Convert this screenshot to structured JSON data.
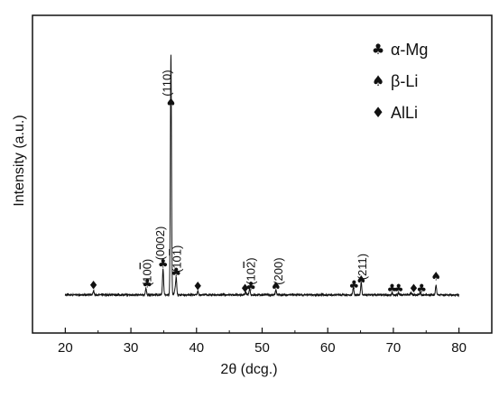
{
  "chart_data": {
    "type": "line",
    "xlabel": "2θ (dcg.)",
    "ylabel": "Intensity (a.u.)",
    "xlim": [
      15,
      85
    ],
    "ylim": [
      0,
      100
    ],
    "x_ticks": [
      20,
      30,
      40,
      50,
      60,
      70,
      80
    ],
    "y_ticks_visible": false,
    "grid": false,
    "legend": {
      "placement": "top-right",
      "entries": [
        {
          "symbol": "club",
          "label": "α-Mg"
        },
        {
          "symbol": "spade",
          "label": "β-Li"
        },
        {
          "symbol": "diamond",
          "label": "AlLi"
        }
      ]
    },
    "series": [
      {
        "baseline": 3,
        "peaks": [
          {
            "x": 24.3,
            "y": 1.8
          },
          {
            "x": 32.3,
            "y": 2.5
          },
          {
            "x": 34.9,
            "y": 10.5
          },
          {
            "x": 36.1,
            "y": 97
          },
          {
            "x": 36.7,
            "y": 2
          },
          {
            "x": 36.9,
            "y": 7
          },
          {
            "x": 40.2,
            "y": 1.5
          },
          {
            "x": 47.5,
            "y": 1
          },
          {
            "x": 48.1,
            "y": 2.5
          },
          {
            "x": 52.1,
            "y": 1.8
          },
          {
            "x": 63.9,
            "y": 3
          },
          {
            "x": 65.1,
            "y": 5
          },
          {
            "x": 69.8,
            "y": 0.8
          },
          {
            "x": 70.8,
            "y": 0.8
          },
          {
            "x": 72.7,
            "y": 0.8
          },
          {
            "x": 74.1,
            "y": 1
          },
          {
            "x": 76.5,
            "y": 4
          }
        ]
      }
    ],
    "markers": [
      {
        "x": 24.3,
        "y": 5.2,
        "symbol": "diamond"
      },
      {
        "x": 32.5,
        "y": 6,
        "symbol": "club"
      },
      {
        "x": 34.9,
        "y": 14,
        "symbol": "club"
      },
      {
        "x": 36.1,
        "y": 79,
        "symbol": "spade"
      },
      {
        "x": 36.9,
        "y": 10.5,
        "symbol": "club"
      },
      {
        "x": 40.2,
        "y": 5,
        "symbol": "diamond"
      },
      {
        "x": 47.4,
        "y": 4,
        "symbol": "diamond"
      },
      {
        "x": 48.3,
        "y": 5,
        "symbol": "club"
      },
      {
        "x": 52.1,
        "y": 5,
        "symbol": "spade"
      },
      {
        "x": 64.0,
        "y": 5.5,
        "symbol": "club"
      },
      {
        "x": 65.1,
        "y": 7.5,
        "symbol": "spade"
      },
      {
        "x": 69.8,
        "y": 4,
        "symbol": "club"
      },
      {
        "x": 70.8,
        "y": 4,
        "symbol": "club"
      },
      {
        "x": 73.1,
        "y": 4,
        "symbol": "diamond"
      },
      {
        "x": 74.3,
        "y": 4,
        "symbol": "club"
      },
      {
        "x": 76.5,
        "y": 9,
        "symbol": "spade"
      }
    ],
    "annotations": [
      {
        "x": 36.1,
        "y": 83,
        "text": "(110)"
      },
      {
        "x": 33.1,
        "y": 6.5,
        "text": "(10$0)"
      },
      {
        "x": 35.1,
        "y": 17,
        "text": "(0002)"
      },
      {
        "x": 37.6,
        "y": 12,
        "text": "(10$1)"
      },
      {
        "x": 48.9,
        "y": 7,
        "text": "(10$2)"
      },
      {
        "x": 53.1,
        "y": 7,
        "text": "(200)"
      },
      {
        "x": 65.9,
        "y": 9,
        "text": "(211)"
      }
    ]
  }
}
